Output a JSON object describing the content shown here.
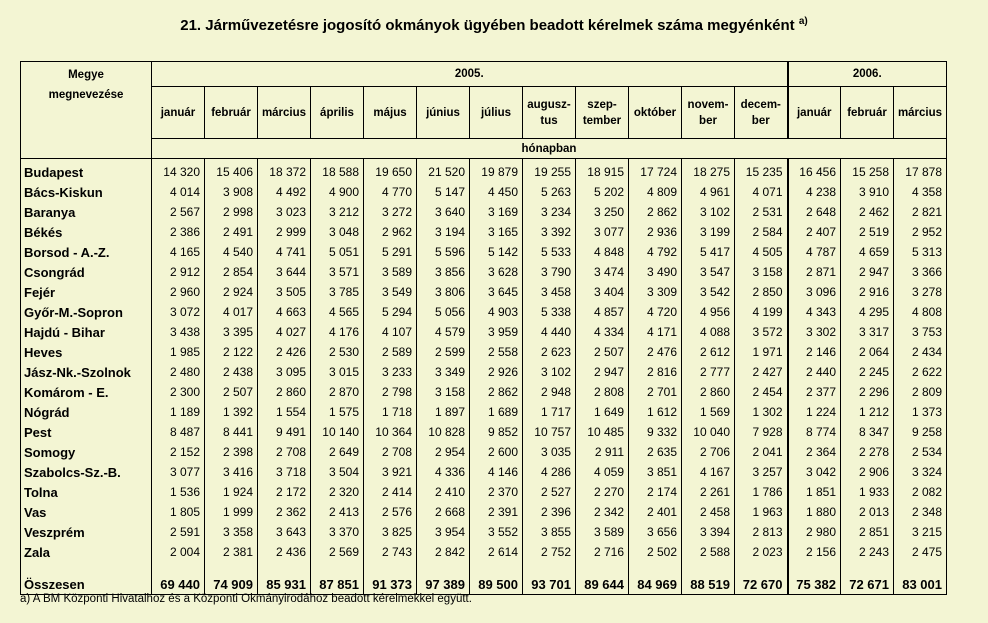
{
  "title": "21. Járművezetésre jogosító okmányok ügyében beadott kérelmek száma megyénként",
  "title_sup": "a)",
  "header": {
    "county_col_line1": "Megye",
    "county_col_line2": "megnevezése",
    "year_2005": "2005.",
    "year_2006": "2006.",
    "unit_row": "hónapban"
  },
  "months": [
    [
      "január"
    ],
    [
      "február"
    ],
    [
      "március"
    ],
    [
      "április"
    ],
    [
      "május"
    ],
    [
      "június"
    ],
    [
      "július"
    ],
    [
      "augusz-",
      "tus"
    ],
    [
      "szep-",
      "tember"
    ],
    [
      "október"
    ],
    [
      "novem-",
      "ber"
    ],
    [
      "decem-",
      "ber"
    ],
    [
      "január"
    ],
    [
      "február"
    ],
    [
      "március"
    ]
  ],
  "rows": [
    {
      "county": "Budapest",
      "values": [
        "14 320",
        "15 406",
        "18 372",
        "18 588",
        "19 650",
        "21 520",
        "19 879",
        "19 255",
        "18 915",
        "17 724",
        "18 275",
        "15 235",
        "16 456",
        "15 258",
        "17 878"
      ]
    },
    {
      "county": "Bács-Kiskun",
      "values": [
        "4 014",
        "3 908",
        "4 492",
        "4 900",
        "4 770",
        "5 147",
        "4 450",
        "5 263",
        "5 202",
        "4 809",
        "4 961",
        "4 071",
        "4 238",
        "3 910",
        "4 358"
      ]
    },
    {
      "county": "Baranya",
      "values": [
        "2 567",
        "2 998",
        "3 023",
        "3 212",
        "3 272",
        "3 640",
        "3 169",
        "3 234",
        "3 250",
        "2 862",
        "3 102",
        "2 531",
        "2 648",
        "2 462",
        "2 821"
      ]
    },
    {
      "county": "Békés",
      "values": [
        "2 386",
        "2 491",
        "2 999",
        "3 048",
        "2 962",
        "3 194",
        "3 165",
        "3 392",
        "3 077",
        "2 936",
        "3 199",
        "2 584",
        "2 407",
        "2 519",
        "2 952"
      ]
    },
    {
      "county": "Borsod - A.-Z.",
      "values": [
        "4 165",
        "4 540",
        "4 741",
        "5 051",
        "5 291",
        "5 596",
        "5 142",
        "5 533",
        "4 848",
        "4 792",
        "5 417",
        "4 505",
        "4 787",
        "4 659",
        "5 313"
      ]
    },
    {
      "county": "Csongrád",
      "values": [
        "2 912",
        "2 854",
        "3 644",
        "3 571",
        "3 589",
        "3 856",
        "3 628",
        "3 790",
        "3 474",
        "3 490",
        "3 547",
        "3 158",
        "2 871",
        "2 947",
        "3 366"
      ]
    },
    {
      "county": "Fejér",
      "values": [
        "2 960",
        "2 924",
        "3 505",
        "3 785",
        "3 549",
        "3 806",
        "3 645",
        "3 458",
        "3 404",
        "3 309",
        "3 542",
        "2 850",
        "3 096",
        "2 916",
        "3 278"
      ]
    },
    {
      "county": "Győr-M.-Sopron",
      "values": [
        "3 072",
        "4 017",
        "4 663",
        "4 565",
        "5 294",
        "5 056",
        "4 903",
        "5 338",
        "4 857",
        "4 720",
        "4 956",
        "4 199",
        "4 343",
        "4 295",
        "4 808"
      ]
    },
    {
      "county": "Hajdú - Bihar",
      "values": [
        "3 438",
        "3 395",
        "4 027",
        "4 176",
        "4 107",
        "4 579",
        "3 959",
        "4 440",
        "4 334",
        "4 171",
        "4 088",
        "3 572",
        "3 302",
        "3 317",
        "3 753"
      ]
    },
    {
      "county": "Heves",
      "values": [
        "1 985",
        "2 122",
        "2 426",
        "2 530",
        "2 589",
        "2 599",
        "2 558",
        "2 623",
        "2 507",
        "2 476",
        "2 612",
        "1 971",
        "2 146",
        "2 064",
        "2 434"
      ]
    },
    {
      "county": "Jász-Nk.-Szolnok",
      "values": [
        "2 480",
        "2 438",
        "3 095",
        "3 015",
        "3 233",
        "3 349",
        "2 926",
        "3 102",
        "2 947",
        "2 816",
        "2 777",
        "2 427",
        "2 440",
        "2 245",
        "2 622"
      ]
    },
    {
      "county": "Komárom - E.",
      "values": [
        "2 300",
        "2 507",
        "2 860",
        "2 870",
        "2 798",
        "3 158",
        "2 862",
        "2 948",
        "2 808",
        "2 701",
        "2 860",
        "2 454",
        "2 377",
        "2 296",
        "2 809"
      ]
    },
    {
      "county": "Nógrád",
      "values": [
        "1 189",
        "1 392",
        "1 554",
        "1 575",
        "1 718",
        "1 897",
        "1 689",
        "1 717",
        "1 649",
        "1 612",
        "1 569",
        "1 302",
        "1 224",
        "1 212",
        "1 373"
      ]
    },
    {
      "county": "Pest",
      "values": [
        "8 487",
        "8 441",
        "9 491",
        "10 140",
        "10 364",
        "10 828",
        "9 852",
        "10 757",
        "10 485",
        "9 332",
        "10 040",
        "7 928",
        "8 774",
        "8 347",
        "9 258"
      ]
    },
    {
      "county": "Somogy",
      "values": [
        "2 152",
        "2 398",
        "2 708",
        "2 649",
        "2 708",
        "2 954",
        "2 600",
        "3 035",
        "2 911",
        "2 635",
        "2 706",
        "2 041",
        "2 364",
        "2 278",
        "2 534"
      ]
    },
    {
      "county": "Szabolcs-Sz.-B.",
      "values": [
        "3 077",
        "3 416",
        "3 718",
        "3 504",
        "3 921",
        "4 336",
        "4 146",
        "4 286",
        "4 059",
        "3 851",
        "4 167",
        "3 257",
        "3 042",
        "2 906",
        "3 324"
      ]
    },
    {
      "county": "Tolna",
      "values": [
        "1 536",
        "1 924",
        "2 172",
        "2 320",
        "2 414",
        "2 410",
        "2 370",
        "2 527",
        "2 270",
        "2 174",
        "2 261",
        "1 786",
        "1 851",
        "1 933",
        "2 082"
      ]
    },
    {
      "county": "Vas",
      "values": [
        "1 805",
        "1 999",
        "2 362",
        "2 413",
        "2 576",
        "2 668",
        "2 391",
        "2 396",
        "2 342",
        "2 401",
        "2 458",
        "1 963",
        "1 880",
        "2 013",
        "2 348"
      ]
    },
    {
      "county": "Veszprém",
      "values": [
        "2 591",
        "3 358",
        "3 643",
        "3 370",
        "3 825",
        "3 954",
        "3 552",
        "3 855",
        "3 589",
        "3 656",
        "3 394",
        "2 813",
        "2 980",
        "2 851",
        "3 215"
      ]
    },
    {
      "county": "Zala",
      "values": [
        "2 004",
        "2 381",
        "2 436",
        "2 569",
        "2 743",
        "2 842",
        "2 614",
        "2 752",
        "2 716",
        "2 502",
        "2 588",
        "2 023",
        "2 156",
        "2 243",
        "2 475"
      ]
    }
  ],
  "total": {
    "label": "Összesen",
    "values": [
      "69 440",
      "74 909",
      "85 931",
      "87 851",
      "91 373",
      "97 389",
      "89 500",
      "93 701",
      "89 644",
      "84 969",
      "88 519",
      "72 670",
      "75 382",
      "72 671",
      "83 001"
    ]
  },
  "footnote": "a) A BM Központi Hivatalhoz és a Központi Okmányirodához beadott kérelmekkel együtt.",
  "colors": {
    "background": "#f3f5d3",
    "text": "#000000",
    "rules": "#000000"
  }
}
